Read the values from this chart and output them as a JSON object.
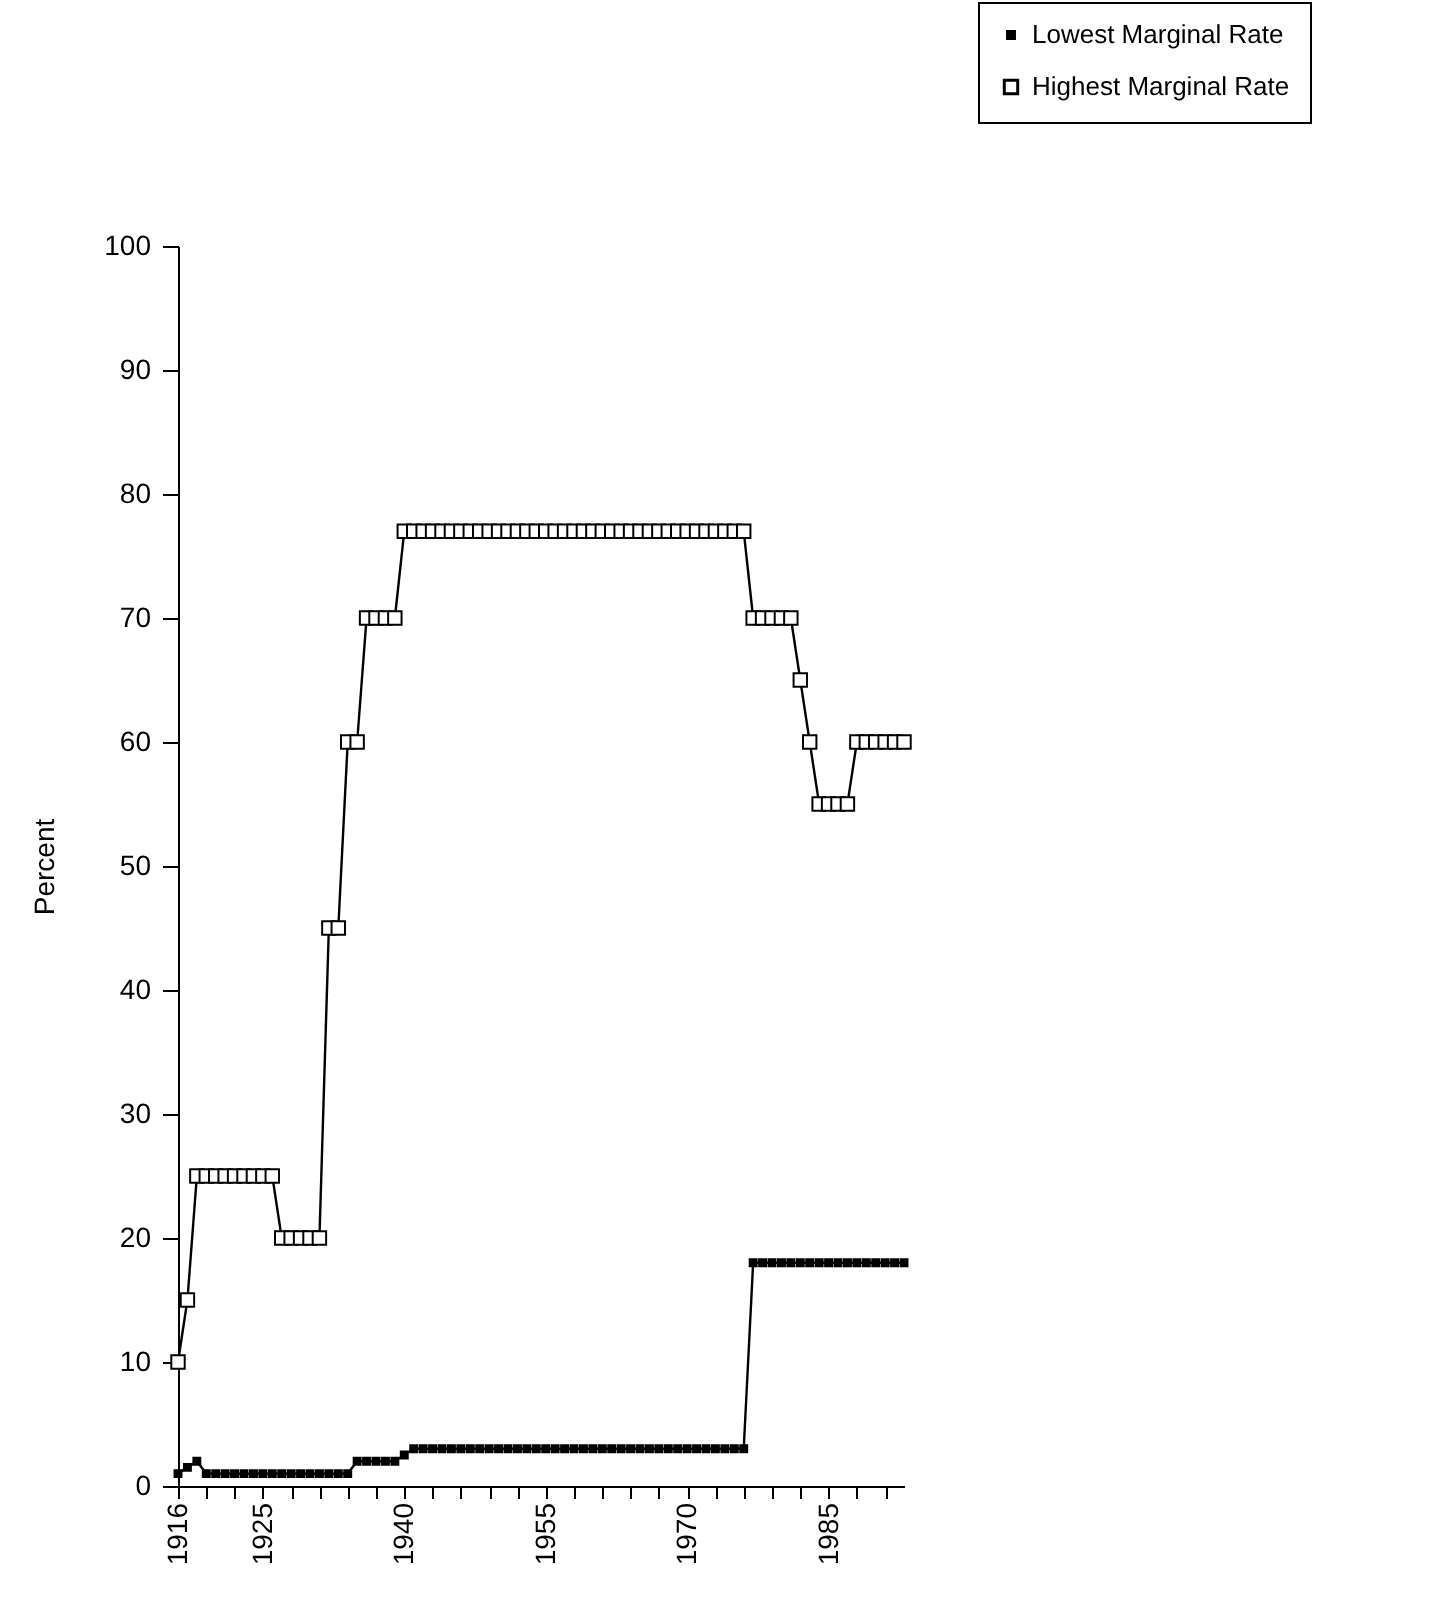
{
  "chart_data": {
    "type": "line",
    "ylabel": "Percent",
    "x": [
      1916,
      1917,
      1918,
      1919,
      1920,
      1921,
      1922,
      1923,
      1924,
      1925,
      1926,
      1927,
      1928,
      1929,
      1930,
      1931,
      1932,
      1933,
      1934,
      1935,
      1936,
      1937,
      1938,
      1939,
      1940,
      1941,
      1942,
      1943,
      1944,
      1945,
      1946,
      1947,
      1948,
      1949,
      1950,
      1951,
      1952,
      1953,
      1954,
      1955,
      1956,
      1957,
      1958,
      1959,
      1960,
      1961,
      1962,
      1963,
      1964,
      1965,
      1966,
      1967,
      1968,
      1969,
      1970,
      1971,
      1972,
      1973,
      1974,
      1975,
      1976,
      1977,
      1978,
      1979,
      1980,
      1981,
      1982,
      1983,
      1984,
      1985,
      1986,
      1987,
      1988,
      1989,
      1990,
      1991,
      1992,
      1993
    ],
    "series": [
      {
        "name": "Lowest Marginal Rate",
        "color": "#000000",
        "values": [
          1,
          1.5,
          2,
          1,
          1,
          1,
          1,
          1,
          1,
          1,
          1,
          1,
          1,
          1,
          1,
          1,
          1,
          1,
          1,
          2,
          2,
          2,
          2,
          2,
          2.5,
          3,
          3,
          3,
          3,
          3,
          3,
          3,
          3,
          3,
          3,
          3,
          3,
          3,
          3,
          3,
          3,
          3,
          3,
          3,
          3,
          3,
          3,
          3,
          3,
          3,
          3,
          3,
          3,
          3,
          3,
          3,
          3,
          3,
          3,
          3,
          3,
          18,
          18,
          18,
          18,
          18,
          18,
          18,
          18,
          18,
          18,
          18,
          18,
          18,
          18,
          18,
          18,
          18
        ]
      },
      {
        "name": "Highest Marginal Rate",
        "color": "#000000",
        "values": [
          10,
          15,
          25,
          25,
          25,
          25,
          25,
          25,
          25,
          25,
          25,
          20,
          20,
          20,
          20,
          20,
          45,
          45,
          60,
          60,
          70,
          70,
          70,
          70,
          77,
          77,
          77,
          77,
          77,
          77,
          77,
          77,
          77,
          77,
          77,
          77,
          77,
          77,
          77,
          77,
          77,
          77,
          77,
          77,
          77,
          77,
          77,
          77,
          77,
          77,
          77,
          77,
          77,
          77,
          77,
          77,
          77,
          77,
          77,
          77,
          77,
          70,
          70,
          70,
          70,
          70,
          65,
          60,
          55,
          55,
          55,
          55,
          60,
          60,
          60,
          60,
          60,
          60
        ]
      }
    ],
    "xlim": [
      1916,
      1993
    ],
    "xticks": [
      1916,
      {
        "value": 1919,
        "label": null
      },
      {
        "value": 1922,
        "label": null
      },
      1925,
      {
        "value": 1928,
        "label": null
      },
      {
        "value": 1931,
        "label": null
      },
      {
        "value": 1934,
        "label": null
      },
      {
        "value": 1937,
        "label": null
      },
      1940,
      {
        "value": 1943,
        "label": null
      },
      {
        "value": 1946,
        "label": null
      },
      {
        "value": 1949,
        "label": null
      },
      {
        "value": 1952,
        "label": null
      },
      1955,
      {
        "value": 1958,
        "label": null
      },
      {
        "value": 1961,
        "label": null
      },
      {
        "value": 1964,
        "label": null
      },
      {
        "value": 1967,
        "label": null
      },
      1970,
      {
        "value": 1973,
        "label": null
      },
      {
        "value": 1976,
        "label": null
      },
      {
        "value": 1979,
        "label": null
      },
      {
        "value": 1982,
        "label": null
      },
      1985,
      {
        "value": 1988,
        "label": null
      },
      {
        "value": 1991,
        "label": null
      }
    ],
    "ylim": [
      0,
      100
    ],
    "yticks": [
      0,
      10,
      20,
      30,
      40,
      50,
      60,
      70,
      80,
      90,
      100
    ],
    "grid": false,
    "legend": "top right",
    "marker": "square",
    "line_style": "solid"
  }
}
